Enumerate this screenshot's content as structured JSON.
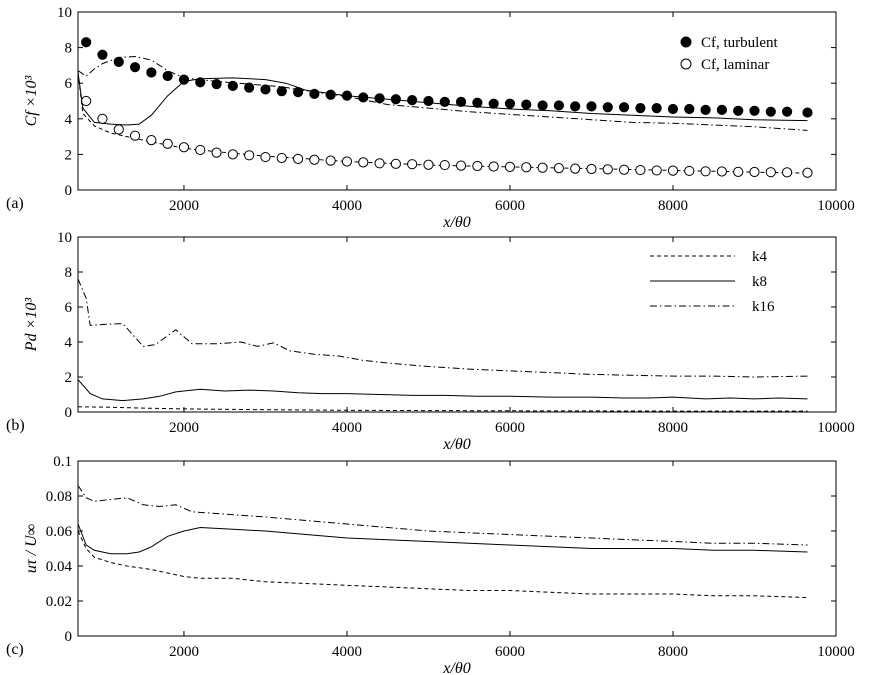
{
  "chart_data": [
    {
      "panel": "(a)",
      "type": "line",
      "xlabel": "x/θ0",
      "ylabel": "Cf ×10³",
      "xlim": [
        700,
        10000
      ],
      "ylim": [
        0,
        10
      ],
      "xticks": [
        2000,
        4000,
        6000,
        8000,
        10000
      ],
      "yticks": [
        0,
        2,
        4,
        6,
        8,
        10
      ],
      "legend_position": "top-right",
      "series": [
        {
          "name": "",
          "style": "dashed",
          "x": [
            700,
            760,
            900,
            1100,
            1300,
            1600,
            2000,
            2400,
            3000,
            3500,
            4000,
            4500,
            5000,
            5500,
            6000,
            6500,
            7000,
            7500,
            8000,
            8500,
            9000,
            9650
          ],
          "y": [
            6.6,
            4.3,
            3.6,
            3.2,
            3.0,
            2.7,
            2.35,
            2.15,
            1.9,
            1.75,
            1.6,
            1.5,
            1.4,
            1.35,
            1.3,
            1.25,
            1.2,
            1.15,
            1.1,
            1.05,
            1.0,
            0.95
          ]
        },
        {
          "name": "",
          "style": "solid",
          "x": [
            700,
            760,
            900,
            1100,
            1300,
            1450,
            1600,
            1800,
            2000,
            2200,
            2600,
            3000,
            3250,
            3500,
            4000,
            4500,
            5000,
            5500,
            6000,
            6500,
            7000,
            7500,
            8000,
            8500,
            9000,
            9650
          ],
          "y": [
            6.6,
            4.6,
            3.8,
            3.7,
            3.65,
            3.7,
            4.2,
            5.3,
            6.1,
            6.25,
            6.3,
            6.2,
            6.0,
            5.6,
            5.3,
            5.1,
            4.9,
            4.7,
            4.55,
            4.45,
            4.3,
            4.2,
            4.1,
            4.05,
            3.95,
            3.9
          ]
        },
        {
          "name": "",
          "style": "dashdot",
          "x": [
            700,
            800,
            900,
            1000,
            1200,
            1400,
            1600,
            1800,
            2000,
            2400,
            2800,
            3200,
            3600,
            4000,
            4500,
            5000,
            5500,
            6000,
            6500,
            7000,
            7500,
            8000,
            8500,
            9000,
            9650
          ],
          "y": [
            6.7,
            6.4,
            6.8,
            7.1,
            7.45,
            7.5,
            7.3,
            6.7,
            6.3,
            6.1,
            5.95,
            5.8,
            5.5,
            5.25,
            4.8,
            4.6,
            4.4,
            4.25,
            4.1,
            3.95,
            3.8,
            3.75,
            3.65,
            3.55,
            3.35
          ]
        },
        {
          "name": "Cf, turbulent",
          "style": "filled-circle",
          "x": [
            800,
            1000,
            1200,
            1400,
            1600,
            1800,
            2000,
            2200,
            2400,
            2600,
            2800,
            3000,
            3200,
            3400,
            3600,
            3800,
            4000,
            4200,
            4400,
            4600,
            4800,
            5000,
            5200,
            5400,
            5600,
            5800,
            6000,
            6200,
            6400,
            6600,
            6800,
            7000,
            7200,
            7400,
            7600,
            7800,
            8000,
            8200,
            8400,
            8600,
            8800,
            9000,
            9200,
            9400,
            9650
          ],
          "y": [
            8.3,
            7.6,
            7.2,
            6.9,
            6.6,
            6.4,
            6.2,
            6.05,
            5.95,
            5.85,
            5.75,
            5.65,
            5.55,
            5.5,
            5.4,
            5.35,
            5.3,
            5.2,
            5.15,
            5.1,
            5.05,
            5.0,
            4.95,
            4.95,
            4.9,
            4.85,
            4.85,
            4.8,
            4.75,
            4.75,
            4.7,
            4.7,
            4.65,
            4.65,
            4.6,
            4.6,
            4.55,
            4.55,
            4.5,
            4.5,
            4.45,
            4.45,
            4.4,
            4.4,
            4.35
          ]
        },
        {
          "name": "Cf, laminar",
          "style": "open-circle",
          "x": [
            800,
            1000,
            1200,
            1400,
            1600,
            1800,
            2000,
            2200,
            2400,
            2600,
            2800,
            3000,
            3200,
            3400,
            3600,
            3800,
            4000,
            4200,
            4400,
            4600,
            4800,
            5000,
            5200,
            5400,
            5600,
            5800,
            6000,
            6200,
            6400,
            6600,
            6800,
            7000,
            7200,
            7400,
            7600,
            7800,
            8000,
            8200,
            8400,
            8600,
            8800,
            9000,
            9200,
            9400,
            9650
          ],
          "y": [
            5.0,
            4.0,
            3.4,
            3.05,
            2.8,
            2.6,
            2.4,
            2.25,
            2.1,
            2.0,
            1.95,
            1.85,
            1.8,
            1.75,
            1.7,
            1.65,
            1.6,
            1.55,
            1.5,
            1.47,
            1.45,
            1.42,
            1.4,
            1.37,
            1.35,
            1.32,
            1.3,
            1.28,
            1.25,
            1.23,
            1.2,
            1.18,
            1.16,
            1.14,
            1.12,
            1.1,
            1.09,
            1.07,
            1.05,
            1.04,
            1.02,
            1.01,
            1.0,
            0.99,
            0.97
          ]
        }
      ],
      "legend": [
        {
          "label": "Cf, turbulent",
          "marker": "filled-circle"
        },
        {
          "label": "Cf, laminar",
          "marker": "open-circle"
        }
      ]
    },
    {
      "panel": "(b)",
      "type": "line",
      "xlabel": "x/θ0",
      "ylabel": "Pd ×10³",
      "xlim": [
        700,
        10000
      ],
      "ylim": [
        0,
        10
      ],
      "xticks": [
        2000,
        4000,
        6000,
        8000,
        10000
      ],
      "yticks": [
        0,
        2,
        4,
        6,
        8,
        10
      ],
      "legend_position": "top-right",
      "series": [
        {
          "name": "k4",
          "style": "dashed",
          "x": [
            700,
            1000,
            1500,
            2000,
            3000,
            4000,
            5000,
            6000,
            7000,
            8000,
            9000,
            9650
          ],
          "y": [
            0.3,
            0.28,
            0.22,
            0.18,
            0.13,
            0.1,
            0.08,
            0.07,
            0.06,
            0.05,
            0.05,
            0.05
          ]
        },
        {
          "name": "k8",
          "style": "solid",
          "x": [
            700,
            850,
            1000,
            1250,
            1500,
            1700,
            1900,
            2200,
            2500,
            2800,
            3100,
            3400,
            3700,
            4000,
            4400,
            4800,
            5200,
            5600,
            6000,
            6500,
            7000,
            7400,
            7700,
            8000,
            8400,
            8700,
            9000,
            9300,
            9650
          ],
          "y": [
            1.85,
            1.05,
            0.75,
            0.65,
            0.75,
            0.9,
            1.15,
            1.3,
            1.2,
            1.25,
            1.2,
            1.1,
            1.05,
            1.05,
            1.0,
            0.95,
            0.95,
            0.9,
            0.9,
            0.85,
            0.85,
            0.8,
            0.8,
            0.85,
            0.75,
            0.8,
            0.75,
            0.8,
            0.75
          ]
        },
        {
          "name": "k16",
          "style": "dashdot",
          "x": [
            700,
            800,
            850,
            1000,
            1250,
            1500,
            1650,
            1900,
            2100,
            2400,
            2700,
            2900,
            3100,
            3300,
            3600,
            3900,
            4200,
            4500,
            5000,
            5500,
            6000,
            6500,
            7000,
            7500,
            8000,
            8500,
            9000,
            9650
          ],
          "y": [
            7.6,
            6.5,
            4.95,
            5.0,
            5.05,
            3.75,
            3.85,
            4.7,
            3.9,
            3.9,
            4.0,
            3.75,
            3.95,
            3.5,
            3.3,
            3.2,
            2.95,
            2.8,
            2.6,
            2.45,
            2.35,
            2.25,
            2.15,
            2.1,
            2.05,
            2.05,
            2.0,
            2.05
          ]
        }
      ],
      "legend": [
        {
          "label": "k4",
          "style": "dashed"
        },
        {
          "label": "k8",
          "style": "solid"
        },
        {
          "label": "k16",
          "style": "dashdot"
        }
      ]
    },
    {
      "panel": "(c)",
      "type": "line",
      "xlabel": "x/θ0",
      "ylabel": "uτ / U∞",
      "xlim": [
        700,
        10000
      ],
      "ylim": [
        0,
        0.1
      ],
      "xticks": [
        2000,
        4000,
        6000,
        8000,
        10000
      ],
      "yticks": [
        0,
        0.02,
        0.04,
        0.06,
        0.08,
        0.1
      ],
      "series": [
        {
          "name": "k4",
          "style": "dashed",
          "x": [
            700,
            800,
            900,
            1100,
            1300,
            1600,
            1800,
            2000,
            2200,
            2600,
            3000,
            3500,
            4000,
            4500,
            5000,
            5500,
            6000,
            6500,
            7000,
            7500,
            8000,
            8500,
            9000,
            9650
          ],
          "y": [
            0.06,
            0.05,
            0.045,
            0.042,
            0.04,
            0.038,
            0.036,
            0.034,
            0.033,
            0.033,
            0.031,
            0.03,
            0.029,
            0.028,
            0.027,
            0.026,
            0.026,
            0.025,
            0.024,
            0.024,
            0.024,
            0.023,
            0.023,
            0.022
          ]
        },
        {
          "name": "k8",
          "style": "solid",
          "x": [
            700,
            800,
            900,
            1100,
            1300,
            1450,
            1600,
            1800,
            2000,
            2200,
            2600,
            3000,
            3500,
            4000,
            4500,
            5000,
            5500,
            6000,
            6500,
            7000,
            7500,
            8000,
            8500,
            9000,
            9650
          ],
          "y": [
            0.064,
            0.052,
            0.049,
            0.047,
            0.047,
            0.048,
            0.051,
            0.057,
            0.06,
            0.062,
            0.061,
            0.06,
            0.058,
            0.056,
            0.055,
            0.054,
            0.053,
            0.052,
            0.051,
            0.05,
            0.05,
            0.05,
            0.049,
            0.049,
            0.048
          ]
        },
        {
          "name": "k16",
          "style": "dashdot",
          "x": [
            700,
            800,
            900,
            1100,
            1300,
            1500,
            1700,
            1900,
            2100,
            2400,
            2700,
            3000,
            3500,
            4000,
            4500,
            5000,
            5500,
            6000,
            6500,
            7000,
            7500,
            8000,
            8500,
            9000,
            9650
          ],
          "y": [
            0.086,
            0.079,
            0.077,
            0.078,
            0.079,
            0.075,
            0.074,
            0.075,
            0.071,
            0.07,
            0.069,
            0.068,
            0.066,
            0.064,
            0.062,
            0.06,
            0.059,
            0.058,
            0.057,
            0.056,
            0.055,
            0.054,
            0.053,
            0.053,
            0.052
          ]
        }
      ]
    }
  ]
}
